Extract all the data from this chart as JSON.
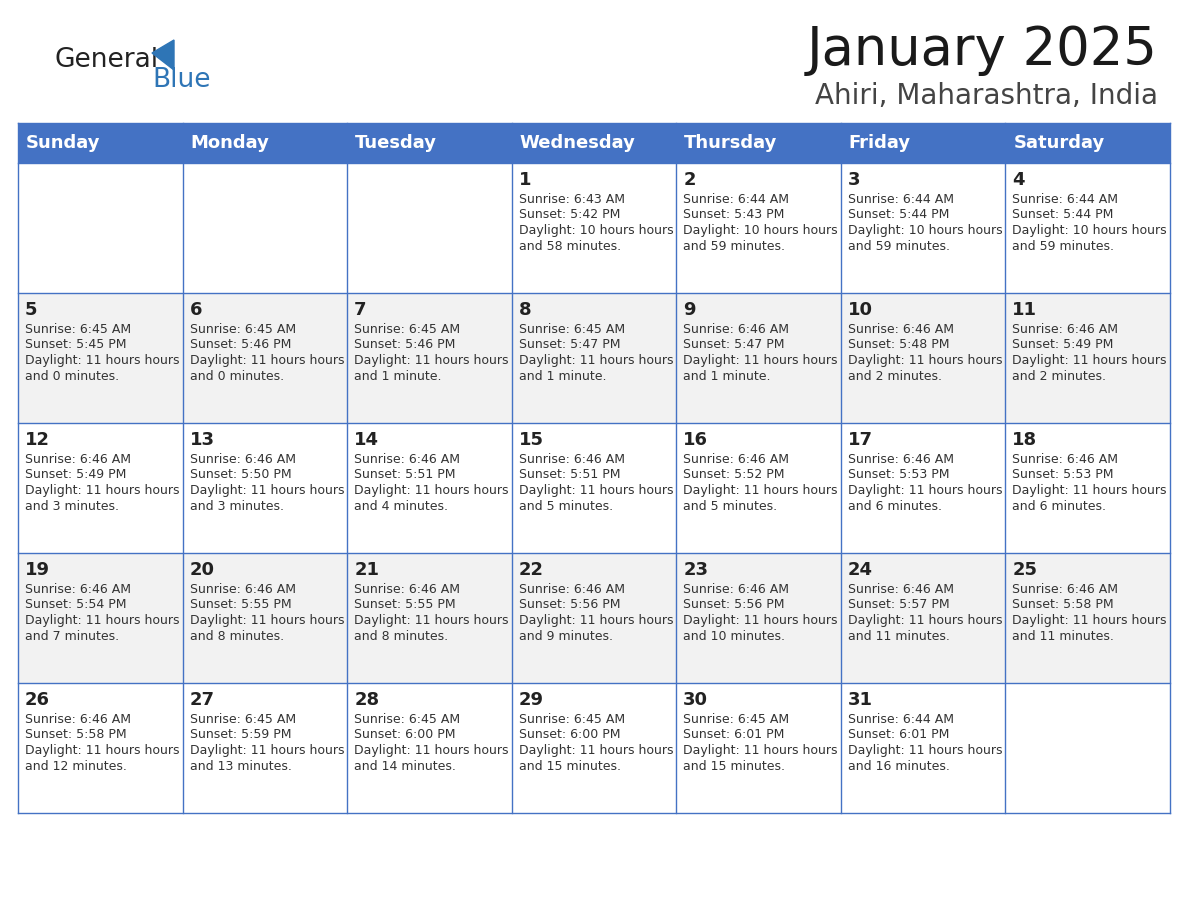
{
  "title": "January 2025",
  "subtitle": "Ahiri, Maharashtra, India",
  "header_bg": "#4472C4",
  "header_text_color": "#FFFFFF",
  "day_names": [
    "Sunday",
    "Monday",
    "Tuesday",
    "Wednesday",
    "Thursday",
    "Friday",
    "Saturday"
  ],
  "alt_row_bg": "#F2F2F2",
  "white_bg": "#FFFFFF",
  "border_color": "#4472C4",
  "cell_text_color": "#333333",
  "day_num_color": "#222222",
  "logo_general_color": "#222222",
  "logo_blue_color": "#2E75B6",
  "weeks": [
    [
      {
        "day": null,
        "sunrise": null,
        "sunset": null,
        "daylight": null
      },
      {
        "day": null,
        "sunrise": null,
        "sunset": null,
        "daylight": null
      },
      {
        "day": null,
        "sunrise": null,
        "sunset": null,
        "daylight": null
      },
      {
        "day": 1,
        "sunrise": "6:43 AM",
        "sunset": "5:42 PM",
        "daylight": "10 hours and 58 minutes."
      },
      {
        "day": 2,
        "sunrise": "6:44 AM",
        "sunset": "5:43 PM",
        "daylight": "10 hours and 59 minutes."
      },
      {
        "day": 3,
        "sunrise": "6:44 AM",
        "sunset": "5:44 PM",
        "daylight": "10 hours and 59 minutes."
      },
      {
        "day": 4,
        "sunrise": "6:44 AM",
        "sunset": "5:44 PM",
        "daylight": "10 hours and 59 minutes."
      }
    ],
    [
      {
        "day": 5,
        "sunrise": "6:45 AM",
        "sunset": "5:45 PM",
        "daylight": "11 hours and 0 minutes."
      },
      {
        "day": 6,
        "sunrise": "6:45 AM",
        "sunset": "5:46 PM",
        "daylight": "11 hours and 0 minutes."
      },
      {
        "day": 7,
        "sunrise": "6:45 AM",
        "sunset": "5:46 PM",
        "daylight": "11 hours and 1 minute."
      },
      {
        "day": 8,
        "sunrise": "6:45 AM",
        "sunset": "5:47 PM",
        "daylight": "11 hours and 1 minute."
      },
      {
        "day": 9,
        "sunrise": "6:46 AM",
        "sunset": "5:47 PM",
        "daylight": "11 hours and 1 minute."
      },
      {
        "day": 10,
        "sunrise": "6:46 AM",
        "sunset": "5:48 PM",
        "daylight": "11 hours and 2 minutes."
      },
      {
        "day": 11,
        "sunrise": "6:46 AM",
        "sunset": "5:49 PM",
        "daylight": "11 hours and 2 minutes."
      }
    ],
    [
      {
        "day": 12,
        "sunrise": "6:46 AM",
        "sunset": "5:49 PM",
        "daylight": "11 hours and 3 minutes."
      },
      {
        "day": 13,
        "sunrise": "6:46 AM",
        "sunset": "5:50 PM",
        "daylight": "11 hours and 3 minutes."
      },
      {
        "day": 14,
        "sunrise": "6:46 AM",
        "sunset": "5:51 PM",
        "daylight": "11 hours and 4 minutes."
      },
      {
        "day": 15,
        "sunrise": "6:46 AM",
        "sunset": "5:51 PM",
        "daylight": "11 hours and 5 minutes."
      },
      {
        "day": 16,
        "sunrise": "6:46 AM",
        "sunset": "5:52 PM",
        "daylight": "11 hours and 5 minutes."
      },
      {
        "day": 17,
        "sunrise": "6:46 AM",
        "sunset": "5:53 PM",
        "daylight": "11 hours and 6 minutes."
      },
      {
        "day": 18,
        "sunrise": "6:46 AM",
        "sunset": "5:53 PM",
        "daylight": "11 hours and 6 minutes."
      }
    ],
    [
      {
        "day": 19,
        "sunrise": "6:46 AM",
        "sunset": "5:54 PM",
        "daylight": "11 hours and 7 minutes."
      },
      {
        "day": 20,
        "sunrise": "6:46 AM",
        "sunset": "5:55 PM",
        "daylight": "11 hours and 8 minutes."
      },
      {
        "day": 21,
        "sunrise": "6:46 AM",
        "sunset": "5:55 PM",
        "daylight": "11 hours and 8 minutes."
      },
      {
        "day": 22,
        "sunrise": "6:46 AM",
        "sunset": "5:56 PM",
        "daylight": "11 hours and 9 minutes."
      },
      {
        "day": 23,
        "sunrise": "6:46 AM",
        "sunset": "5:56 PM",
        "daylight": "11 hours and 10 minutes."
      },
      {
        "day": 24,
        "sunrise": "6:46 AM",
        "sunset": "5:57 PM",
        "daylight": "11 hours and 11 minutes."
      },
      {
        "day": 25,
        "sunrise": "6:46 AM",
        "sunset": "5:58 PM",
        "daylight": "11 hours and 11 minutes."
      }
    ],
    [
      {
        "day": 26,
        "sunrise": "6:46 AM",
        "sunset": "5:58 PM",
        "daylight": "11 hours and 12 minutes."
      },
      {
        "day": 27,
        "sunrise": "6:45 AM",
        "sunset": "5:59 PM",
        "daylight": "11 hours and 13 minutes."
      },
      {
        "day": 28,
        "sunrise": "6:45 AM",
        "sunset": "6:00 PM",
        "daylight": "11 hours and 14 minutes."
      },
      {
        "day": 29,
        "sunrise": "6:45 AM",
        "sunset": "6:00 PM",
        "daylight": "11 hours and 15 minutes."
      },
      {
        "day": 30,
        "sunrise": "6:45 AM",
        "sunset": "6:01 PM",
        "daylight": "11 hours and 15 minutes."
      },
      {
        "day": 31,
        "sunrise": "6:44 AM",
        "sunset": "6:01 PM",
        "daylight": "11 hours and 16 minutes."
      },
      {
        "day": null,
        "sunrise": null,
        "sunset": null,
        "daylight": null
      }
    ]
  ]
}
